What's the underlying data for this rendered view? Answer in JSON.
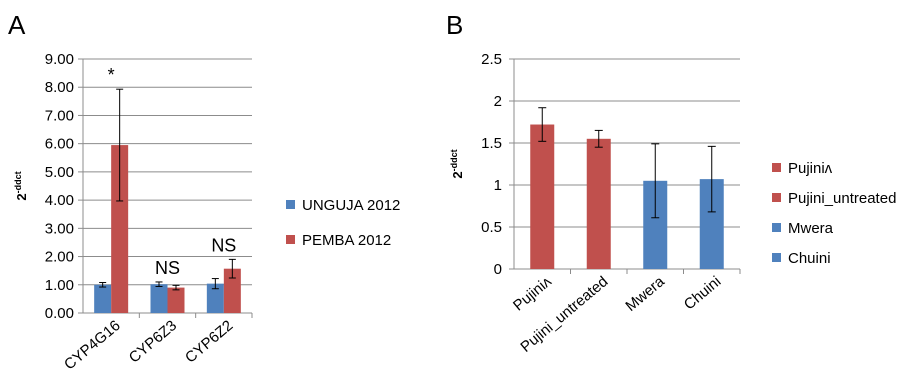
{
  "chart_data": [
    {
      "panel": "A",
      "type": "bar",
      "categories": [
        "CYP4G16",
        "CYP6Z3",
        "CYP6Z2"
      ],
      "ylabel": "2^-ddct",
      "ylim": [
        0,
        9
      ],
      "yticks": [
        "0.00",
        "1.00",
        "2.00",
        "3.00",
        "4.00",
        "5.00",
        "6.00",
        "7.00",
        "8.00",
        "9.00"
      ],
      "grid": true,
      "legend_position": "right",
      "series": [
        {
          "name": "UNGUJA 2012",
          "color": "#4f81bd",
          "values": [
            1.0,
            1.02,
            1.04
          ],
          "errors": [
            0.08,
            0.08,
            0.18
          ]
        },
        {
          "name": "PEMBA 2012",
          "color": "#c0504d",
          "values": [
            5.95,
            0.9,
            1.57
          ],
          "errors": [
            1.98,
            0.08,
            0.33
          ]
        }
      ],
      "annotations": [
        "*",
        "NS",
        "NS"
      ]
    },
    {
      "panel": "B",
      "type": "bar",
      "categories": [
        "Pujiniʌ",
        "Pujini_untreated",
        "Mwera",
        "Chuini"
      ],
      "ylabel": "2^-ddct",
      "ylim": [
        0,
        2.5
      ],
      "yticks": [
        "0",
        "0.5",
        "1",
        "1.5",
        "2",
        "2.5"
      ],
      "grid": true,
      "legend_position": "right",
      "values": [
        1.72,
        1.55,
        1.05,
        1.07
      ],
      "errors": [
        0.2,
        0.1,
        0.44,
        0.39
      ],
      "colors": [
        "#c0504d",
        "#c0504d",
        "#4f81bd",
        "#4f81bd"
      ],
      "legend": [
        {
          "name": "Pujiniʌ",
          "color": "#c0504d"
        },
        {
          "name": "Pujini_untreated",
          "color": "#c0504d"
        },
        {
          "name": "Mwera",
          "color": "#4f81bd"
        },
        {
          "name": "Chuini",
          "color": "#4f81bd"
        }
      ]
    }
  ]
}
